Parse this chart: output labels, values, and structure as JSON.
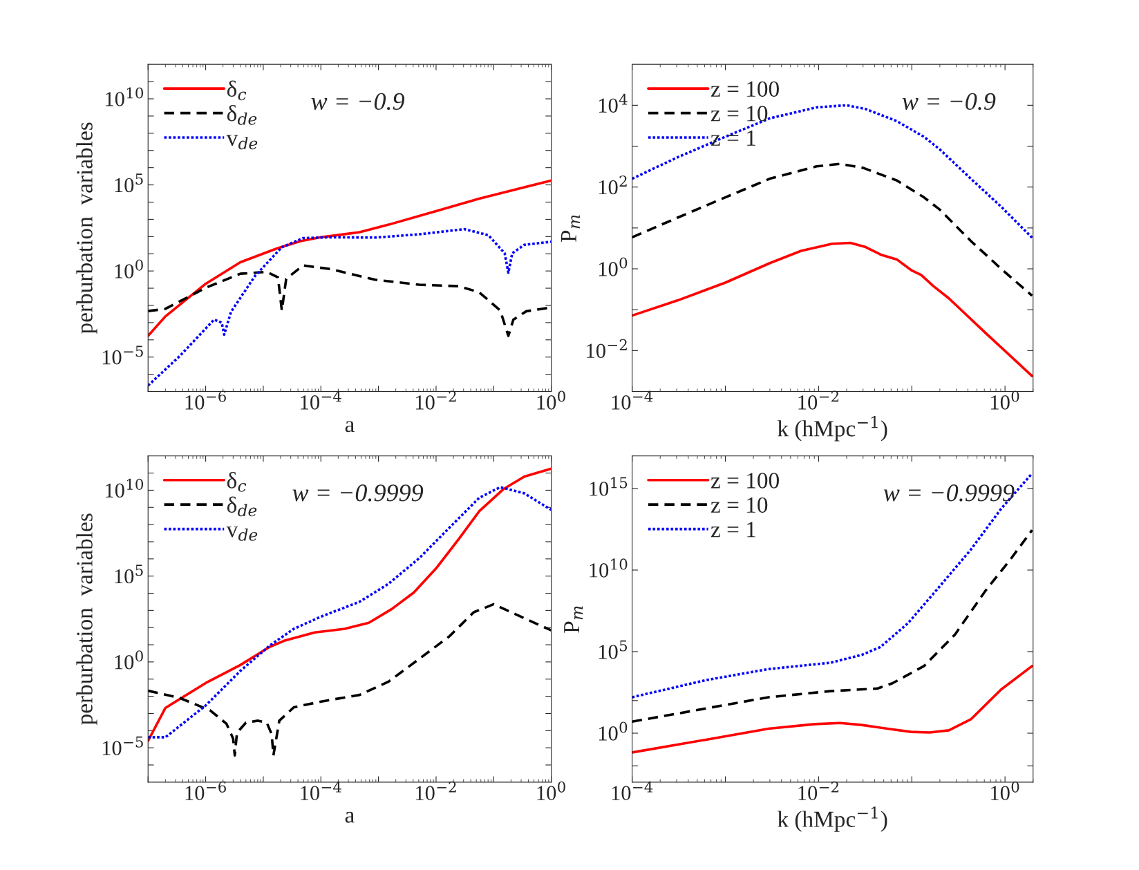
{
  "chart_data": [
    {
      "type": "line",
      "xlabel": "a",
      "ylabel": "perburbation  variables",
      "log": "xy",
      "legend": "top left",
      "grid": false,
      "xlim": [
        1e-07,
        1
      ],
      "ylim": [
        1e-07,
        1000000000000.0
      ],
      "xticks": [
        {
          "value": 1e-07,
          "label": null
        },
        {
          "value": 1e-06,
          "label": "10$^{−6}$"
        },
        {
          "value": 1e-05,
          "label": null
        },
        {
          "value": 0.0001,
          "label": "10$^{−4}$"
        },
        {
          "value": 0.001,
          "label": null
        },
        {
          "value": 0.01,
          "label": "10$^{−2}$"
        },
        {
          "value": 0.1,
          "label": null
        },
        {
          "value": 1,
          "label": "10$^{0}$"
        }
      ],
      "yticks": [
        {
          "value": 1e-06,
          "label": null
        },
        {
          "value": 1e-05,
          "label": "10$^{−5}$"
        },
        {
          "value": 0.0001,
          "label": null
        },
        {
          "value": 0.001,
          "label": null
        },
        {
          "value": 0.01,
          "label": null
        },
        {
          "value": 0.1,
          "label": null
        },
        {
          "value": 1,
          "label": "10$^{0}$"
        },
        {
          "value": 10,
          "label": null
        },
        {
          "value": 100,
          "label": null
        },
        {
          "value": 1000,
          "label": null
        },
        {
          "value": 10000,
          "label": null
        },
        {
          "value": 100000.0,
          "label": "10$^{5}$"
        },
        {
          "value": 1000000.0,
          "label": null
        },
        {
          "value": 10000000.0,
          "label": null
        },
        {
          "value": 100000000.0,
          "label": null
        },
        {
          "value": 1000000000.0,
          "label": null
        },
        {
          "value": 10000000000.0,
          "label": "10$^{10}$"
        },
        {
          "value": 100000000000.0,
          "label": null
        }
      ],
      "annotations": [
        "w = −0.9"
      ],
      "series": [
        {
          "name": "δ$_{c}$",
          "color": "#ff0000",
          "line_style": "solid",
          "x": [
            1e-07,
            2e-07,
            1e-06,
            4e-06,
            1.7e-05,
            4.4e-05,
            0.0001,
            0.00047,
            0.0015,
            0.01,
            0.056,
            1
          ],
          "values": [
            0.00017,
            0.0023,
            0.18,
            3.2,
            20,
            54,
            91,
            180,
            490,
            3000,
            16000,
            180000.0
          ]
        },
        {
          "name": "δ$_{de}$",
          "color": "#000000",
          "line_style": "dashed",
          "x": [
            1e-07,
            2e-07,
            1e-06,
            4e-06,
            1.15e-05,
            1.8e-05,
            2.1e-05,
            2.5e-05,
            4.9e-05,
            0.000145,
            0.00087,
            0.0051,
            0.025,
            0.056,
            0.13,
            0.18,
            0.22,
            0.37,
            1
          ],
          "values": [
            0.0047,
            0.0063,
            0.105,
            0.69,
            0.89,
            0.43,
            0.0051,
            0.35,
            2.1,
            1.3,
            0.31,
            0.16,
            0.13,
            0.058,
            0.0051,
            0.00017,
            0.0015,
            0.0046,
            0.0076
          ]
        },
        {
          "name": "v$_{de}$",
          "color": "#0000ff",
          "line_style": "dotted",
          "x": [
            1e-07,
            3.6e-07,
            1.4e-06,
            1.9e-06,
            2.1e-06,
            2.75e-06,
            7.2e-06,
            2.1e-05,
            4.9e-05,
            0.000145,
            0.00087,
            0.0051,
            0.031,
            0.081,
            0.155,
            0.18,
            0.21,
            0.34,
            1
          ],
          "values": [
            2.2e-07,
            1.2e-05,
            0.0015,
            0.001,
            0.0002,
            0.0042,
            0.52,
            24,
            81,
            91,
            87,
            135,
            270,
            120,
            10.7,
            0.79,
            10.7,
            33,
            50
          ]
        }
      ]
    },
    {
      "type": "line",
      "xlabel": "k (hMpc$^{−1}$)",
      "ylabel": "P$_{m}$",
      "log": "xy",
      "legend": "top left",
      "grid": false,
      "xlim": [
        0.0001,
        2
      ],
      "ylim": [
        0.001,
        100000.0
      ],
      "xticks": [
        {
          "value": 0.0001,
          "label": "10$^{−4}$"
        },
        {
          "value": 0.001,
          "label": null
        },
        {
          "value": 0.01,
          "label": "10$^{−2}$"
        },
        {
          "value": 0.1,
          "label": null
        },
        {
          "value": 1,
          "label": "10$^{0}$"
        }
      ],
      "yticks": [
        {
          "value": 0.01,
          "label": "10$^{−2}$"
        },
        {
          "value": 0.1,
          "label": null
        },
        {
          "value": 1,
          "label": "10$^{0}$"
        },
        {
          "value": 10,
          "label": null
        },
        {
          "value": 100,
          "label": "10$^{2}$"
        },
        {
          "value": 1000,
          "label": null
        },
        {
          "value": 10000,
          "label": "10$^{4}$"
        }
      ],
      "annotations": [
        "w = −0.9"
      ],
      "series": [
        {
          "name": "z = 100",
          "color": "#ff0000",
          "line_style": "solid",
          "x": [
            0.0001,
            0.00031,
            0.001,
            0.003,
            0.0065,
            0.014,
            0.022,
            0.032,
            0.047,
            0.069,
            0.1,
            0.126,
            0.17,
            0.25,
            0.63,
            1.95
          ],
          "values": [
            0.072,
            0.17,
            0.46,
            1.38,
            2.75,
            4.1,
            4.3,
            3.4,
            2.2,
            1.7,
            0.91,
            0.71,
            0.38,
            0.19,
            0.026,
            0.0024
          ]
        },
        {
          "name": "z = 10",
          "color": "#000000",
          "line_style": "dashed",
          "x": [
            0.0001,
            0.00031,
            0.001,
            0.003,
            0.0095,
            0.017,
            0.03,
            0.069,
            0.135,
            0.2,
            0.43,
            0.91,
            1.95
          ],
          "values": [
            5.9,
            18,
            56,
            160,
            320,
            370,
            295,
            145,
            56,
            28,
            4.8,
            1,
            0.22
          ]
        },
        {
          "name": "z = 1",
          "color": "#0000ff",
          "line_style": "dotted",
          "x": [
            0.0001,
            0.00031,
            0.001,
            0.003,
            0.0095,
            0.02,
            0.032,
            0.069,
            0.135,
            0.2,
            0.43,
            0.91,
            1.95
          ],
          "values": [
            160,
            540,
            1700,
            4800,
            8900,
            10000,
            8100,
            4100,
            1700,
            830,
            160,
            33,
            5.8
          ]
        }
      ]
    },
    {
      "type": "line",
      "xlabel": "a",
      "ylabel": "perburbation  variables",
      "log": "xy",
      "legend": "top left",
      "grid": false,
      "xlim": [
        1e-07,
        1
      ],
      "ylim": [
        1e-07,
        1000000000000.0
      ],
      "xticks": [
        {
          "value": 1e-07,
          "label": null
        },
        {
          "value": 1e-06,
          "label": "10$^{−6}$"
        },
        {
          "value": 1e-05,
          "label": null
        },
        {
          "value": 0.0001,
          "label": "10$^{−4}$"
        },
        {
          "value": 0.001,
          "label": null
        },
        {
          "value": 0.01,
          "label": "10$^{−2}$"
        },
        {
          "value": 0.1,
          "label": null
        },
        {
          "value": 1,
          "label": "10$^{0}$"
        }
      ],
      "yticks": [
        {
          "value": 1e-06,
          "label": null
        },
        {
          "value": 1e-05,
          "label": "10$^{−5}$"
        },
        {
          "value": 0.0001,
          "label": null
        },
        {
          "value": 0.001,
          "label": null
        },
        {
          "value": 0.01,
          "label": null
        },
        {
          "value": 0.1,
          "label": null
        },
        {
          "value": 1,
          "label": "10$^{0}$"
        },
        {
          "value": 10,
          "label": null
        },
        {
          "value": 100,
          "label": null
        },
        {
          "value": 1000,
          "label": null
        },
        {
          "value": 10000,
          "label": null
        },
        {
          "value": 100000.0,
          "label": "10$^{5}$"
        },
        {
          "value": 1000000.0,
          "label": null
        },
        {
          "value": 10000000.0,
          "label": null
        },
        {
          "value": 100000000.0,
          "label": null
        },
        {
          "value": 1000000000.0,
          "label": null
        },
        {
          "value": 10000000000.0,
          "label": "10$^{10}$"
        },
        {
          "value": 100000000000.0,
          "label": null
        }
      ],
      "annotations": [
        "w = −0.9999"
      ],
      "series": [
        {
          "name": "δ$_{c}$",
          "color": "#ff0000",
          "line_style": "solid",
          "x": [
            1e-07,
            2e-07,
            1e-06,
            4e-06,
            1.3e-05,
            2.3e-05,
            7.8e-05,
            0.00026,
            0.00068,
            0.0017,
            0.0041,
            0.01,
            0.025,
            0.056,
            0.15,
            0.34,
            1
          ],
          "values": [
            2.5e-05,
            0.0021,
            0.059,
            0.66,
            7.6,
            17,
            52,
            85,
            190,
            1200,
            11000,
            280000.0,
            15000000.0,
            590000000.0,
            12000000000.0,
            62000000000.0,
            180000000000.0
          ]
        },
        {
          "name": "δ$_{de}$",
          "color": "#000000",
          "line_style": "dashed",
          "x": [
            1e-07,
            3.6e-07,
            1.2e-06,
            2.3e-06,
            3e-06,
            3.2e-06,
            3.5e-06,
            5e-06,
            8.1e-06,
            1.15e-05,
            1.4e-05,
            1.5e-05,
            1.9e-05,
            3.4e-05,
            0.00011,
            0.00047,
            0.0015,
            0.0051,
            0.017,
            0.045,
            0.1,
            0.34,
            1
          ],
          "values": [
            0.021,
            0.0078,
            0.0015,
            0.00025,
            3.4e-05,
            3.6e-06,
            7.6e-05,
            0.00029,
            0.00038,
            0.00029,
            6.2e-05,
            3.6e-06,
            0.00038,
            0.0023,
            0.0052,
            0.012,
            0.072,
            1.5,
            31,
            780,
            2300,
            350,
            69
          ]
        },
        {
          "name": "v$_{de}$",
          "color": "#0000ff",
          "line_style": "dotted",
          "x": [
            1e-07,
            2e-07,
            1e-06,
            4e-06,
            1.3e-05,
            3.4e-05,
            0.0001,
            0.00047,
            0.0015,
            0.0051,
            0.017,
            0.056,
            0.13,
            0.34,
            1
          ],
          "values": [
            4.1e-05,
            4.1e-05,
            0.0029,
            0.3,
            9.1,
            85,
            430,
            3200,
            36000,
            1100000.0,
            65000000.0,
            3600000000.0,
            15000000000.0,
            6600000000.0,
            720000000.0
          ]
        }
      ]
    },
    {
      "type": "line",
      "xlabel": "k (hMpc$^{−1}$)",
      "ylabel": "P$_{m}$",
      "log": "xy",
      "legend": "top left",
      "grid": false,
      "xlim": [
        0.0001,
        2
      ],
      "ylim": [
        0.001,
        1e+17
      ],
      "xticks": [
        {
          "value": 0.0001,
          "label": "10$^{−4}$"
        },
        {
          "value": 0.001,
          "label": null
        },
        {
          "value": 0.01,
          "label": "10$^{−2}$"
        },
        {
          "value": 0.1,
          "label": null
        },
        {
          "value": 1,
          "label": "10$^{0}$"
        }
      ],
      "yticks": [
        {
          "value": 0.01,
          "label": null
        },
        {
          "value": 1,
          "label": "10$^{0}$"
        },
        {
          "value": 100,
          "label": null
        },
        {
          "value": 100000.0,
          "label": "10$^{5}$"
        },
        {
          "value": 10000000000.0,
          "label": "10$^{10}$"
        },
        {
          "value": 1000000000000000.0,
          "label": "10$^{15}$"
        }
      ],
      "annotations": [
        "w = −0.9999"
      ],
      "series": [
        {
          "name": "z = 100",
          "color": "#ff0000",
          "line_style": "solid",
          "x": [
            0.0001,
            0.00062,
            0.0029,
            0.0091,
            0.017,
            0.029,
            0.062,
            0.098,
            0.155,
            0.25,
            0.43,
            0.91,
            1.95
          ],
          "values": [
            0.066,
            0.4,
            1.9,
            3.6,
            4.2,
            3.2,
            1.7,
            1.2,
            1.1,
            1.5,
            7.1,
            480,
            13000
          ]
        },
        {
          "name": "z = 10",
          "color": "#000000",
          "line_style": "dashed",
          "x": [
            0.0001,
            0.00062,
            0.0029,
            0.0135,
            0.043,
            0.062,
            0.135,
            0.29,
            0.62,
            1.15,
            1.95
          ],
          "values": [
            5.1,
            33,
            160,
            380,
            550,
            1150,
            13000,
            1100000.0,
            560000000.0,
            47000000000.0,
            2800000000000.0
          ]
        },
        {
          "name": "z = 1",
          "color": "#0000ff",
          "line_style": "dotted",
          "x": [
            0.0001,
            0.00062,
            0.0029,
            0.0135,
            0.029,
            0.046,
            0.091,
            0.195,
            0.43,
            0.91,
            1.95
          ],
          "values": [
            160,
            1800,
            8500,
            21000,
            63000,
            190000.0,
            5500000.0,
            870000000.0,
            180000000000.0,
            58000000000000.0,
            8300000000000000.0
          ]
        }
      ]
    }
  ]
}
